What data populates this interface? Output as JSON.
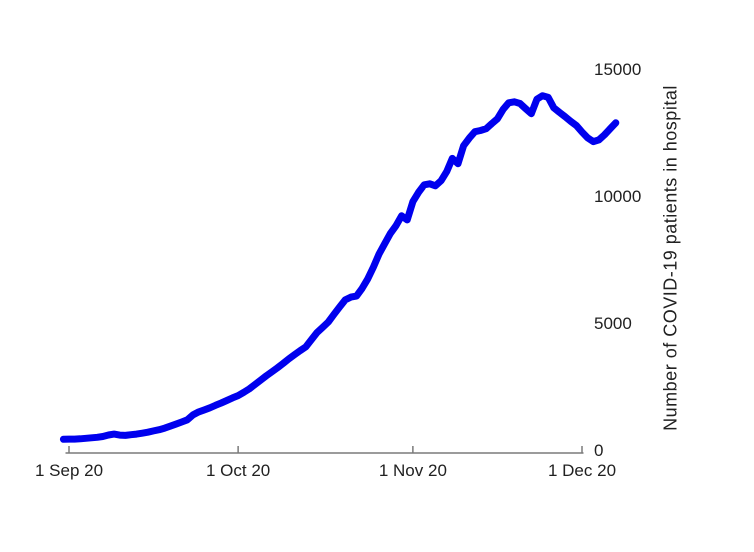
{
  "chart_data": {
    "type": "line",
    "title": "",
    "xlabel": "",
    "ylabel": "Number of COVID-19 patients in hospital",
    "legend": "none",
    "grid": false,
    "x_axis": {
      "ticks": [
        {
          "label": "1 Sep 20",
          "day": 0
        },
        {
          "label": "1 Oct 20",
          "day": 30
        },
        {
          "label": "1 Nov 20",
          "day": 61
        },
        {
          "label": "1 Dec 20",
          "day": 91
        }
      ],
      "unit": "days since 1 Sep 2020",
      "range_days": [
        -1,
        97
      ],
      "tick_direction": "in"
    },
    "y_axis": {
      "ticks": [
        {
          "label": "0",
          "value": 0
        },
        {
          "label": "5000",
          "value": 5000
        },
        {
          "label": "10000",
          "value": 10000
        },
        {
          "label": "15000",
          "value": 15000
        }
      ],
      "ylim": [
        0,
        15500
      ],
      "side": "right"
    },
    "colors": {
      "line": "#0000EE",
      "axis": "#7a7a7a",
      "text": "#212121",
      "background": "#ffffff"
    },
    "series": [
      {
        "name": "Number of COVID-19 patients in hospital",
        "points": [
          [
            -1,
            460
          ],
          [
            0,
            470
          ],
          [
            1,
            470
          ],
          [
            2,
            480
          ],
          [
            3,
            500
          ],
          [
            4,
            520
          ],
          [
            5,
            540
          ],
          [
            6,
            570
          ],
          [
            7,
            630
          ],
          [
            8,
            665
          ],
          [
            9,
            625
          ],
          [
            10,
            615
          ],
          [
            11,
            640
          ],
          [
            12,
            665
          ],
          [
            13,
            700
          ],
          [
            14,
            740
          ],
          [
            15,
            790
          ],
          [
            16,
            840
          ],
          [
            17,
            900
          ],
          [
            18,
            980
          ],
          [
            19,
            1060
          ],
          [
            20,
            1140
          ],
          [
            21,
            1230
          ],
          [
            22,
            1420
          ],
          [
            23,
            1540
          ],
          [
            24,
            1620
          ],
          [
            25,
            1700
          ],
          [
            26,
            1800
          ],
          [
            27,
            1890
          ],
          [
            28,
            1990
          ],
          [
            29,
            2090
          ],
          [
            30,
            2180
          ],
          [
            31,
            2310
          ],
          [
            32,
            2450
          ],
          [
            33,
            2620
          ],
          [
            34,
            2790
          ],
          [
            35,
            2960
          ],
          [
            36,
            3120
          ],
          [
            37,
            3280
          ],
          [
            38,
            3450
          ],
          [
            39,
            3630
          ],
          [
            40,
            3790
          ],
          [
            41,
            3950
          ],
          [
            42,
            4100
          ],
          [
            43,
            4380
          ],
          [
            44,
            4660
          ],
          [
            45,
            4870
          ],
          [
            46,
            5080
          ],
          [
            47,
            5380
          ],
          [
            48,
            5670
          ],
          [
            49,
            5950
          ],
          [
            50,
            6060
          ],
          [
            51,
            6100
          ],
          [
            52,
            6400
          ],
          [
            53,
            6780
          ],
          [
            54,
            7240
          ],
          [
            55,
            7760
          ],
          [
            56,
            8160
          ],
          [
            57,
            8560
          ],
          [
            58,
            8870
          ],
          [
            59,
            9260
          ],
          [
            60,
            9100
          ],
          [
            61,
            9820
          ],
          [
            62,
            10180
          ],
          [
            63,
            10480
          ],
          [
            64,
            10520
          ],
          [
            65,
            10440
          ],
          [
            66,
            10640
          ],
          [
            67,
            11000
          ],
          [
            68,
            11520
          ],
          [
            69,
            11310
          ],
          [
            70,
            12020
          ],
          [
            71,
            12320
          ],
          [
            72,
            12570
          ],
          [
            73,
            12620
          ],
          [
            74,
            12690
          ],
          [
            75,
            12890
          ],
          [
            76,
            13080
          ],
          [
            77,
            13450
          ],
          [
            78,
            13710
          ],
          [
            79,
            13750
          ],
          [
            80,
            13680
          ],
          [
            81,
            13480
          ],
          [
            82,
            13280
          ],
          [
            83,
            13850
          ],
          [
            84,
            13990
          ],
          [
            85,
            13920
          ],
          [
            86,
            13510
          ],
          [
            87,
            13330
          ],
          [
            88,
            13160
          ],
          [
            89,
            12980
          ],
          [
            90,
            12810
          ],
          [
            91,
            12560
          ],
          [
            92,
            12330
          ],
          [
            93,
            12180
          ],
          [
            94,
            12250
          ],
          [
            95,
            12450
          ],
          [
            96,
            12690
          ],
          [
            97,
            12920
          ]
        ]
      }
    ]
  }
}
